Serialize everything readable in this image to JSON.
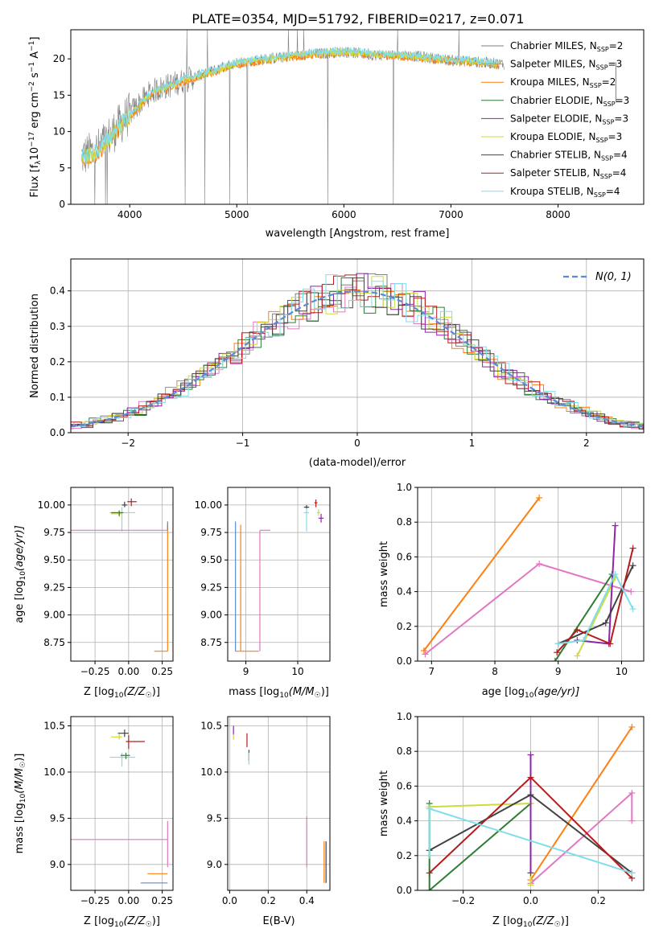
{
  "figure": {
    "title": "PLATE=0354, MJD=51792, FIBERID=0217, z=0.071",
    "colors": {
      "chabrier_miles": "#7f7f7f",
      "salpeter_miles": "#e377c2",
      "kroupa_miles": "#ff7f0e",
      "chabrier_elodie": "#2e7d32",
      "salpeter_elodie": "#8e24aa",
      "kroupa_elodie": "#cddc39",
      "chabrier_stelib": "#424242",
      "salpeter_stelib": "#b71c1c",
      "kroupa_stelib": "#80deea",
      "normal": "#5b8bd6"
    }
  },
  "chart_data": [
    {
      "id": "spectrum",
      "type": "line",
      "xlabel": "wavelength [Angstrom, rest frame]",
      "ylabel_main": "Flux [f",
      "ylabel_sub": "λ",
      "ylabel_rest": "10",
      "ylabel_exp1": "−17",
      "ylabel_tail": " erg cm",
      "ylabel_exp2": "−2",
      "ylabel_s": " s",
      "ylabel_exp3": "−1",
      "ylabel_A": " A",
      "ylabel_exp4": "−1",
      "ylabel_end": "]",
      "xlim": [
        3450,
        8800
      ],
      "ylim": [
        0,
        24
      ],
      "xticks": [
        "4000",
        "5000",
        "6000",
        "7000",
        "8000"
      ],
      "yticks": [
        "0",
        "5",
        "10",
        "15",
        "20"
      ],
      "legend_position": "upper-right",
      "legend": [
        {
          "key": "chabrier_miles",
          "name": "Chabrier MILES, N",
          "sub": "SSP",
          "tail": "=2"
        },
        {
          "key": "salpeter_miles",
          "name": "Salpeter MILES, N",
          "sub": "SSP",
          "tail": "=3"
        },
        {
          "key": "kroupa_miles",
          "name": "Kroupa MILES, N",
          "sub": "SSP",
          "tail": "=2"
        },
        {
          "key": "chabrier_elodie",
          "name": "Chabrier ELODIE, N",
          "sub": "SSP",
          "tail": "=3"
        },
        {
          "key": "salpeter_elodie",
          "name": "Salpeter ELODIE, N",
          "sub": "SSP",
          "tail": "=3"
        },
        {
          "key": "kroupa_elodie",
          "name": "Kroupa ELODIE, N",
          "sub": "SSP",
          "tail": "=3"
        },
        {
          "key": "chabrier_stelib",
          "name": "Chabrier STELIB, N",
          "sub": "SSP",
          "tail": "=4"
        },
        {
          "key": "salpeter_stelib",
          "name": "Salpeter STELIB, N",
          "sub": "SSP",
          "tail": "=4"
        },
        {
          "key": "kroupa_stelib",
          "name": "Kroupa STELIB, N",
          "sub": "SSP",
          "tail": "=4"
        }
      ],
      "data_trend": {
        "x": [
          3550,
          3700,
          3850,
          4000,
          4200,
          4500,
          4800,
          5000,
          5300,
          5600,
          6000,
          6300,
          6600,
          7000,
          7300,
          7500
        ],
        "y": [
          6.5,
          7.5,
          10.0,
          12.5,
          15.5,
          17.0,
          18.5,
          19.5,
          20.0,
          20.5,
          21.0,
          20.5,
          20.5,
          19.8,
          19.5,
          19.3
        ]
      },
      "model_trend": {
        "x": [
          3550,
          3700,
          3850,
          4000,
          4200,
          4500,
          4800,
          5000,
          5300,
          5600,
          6000,
          6300,
          6600,
          7000,
          7300,
          7450
        ],
        "y": [
          6.0,
          7.0,
          9.5,
          12.0,
          15.0,
          16.8,
          18.2,
          19.2,
          19.8,
          20.3,
          20.8,
          20.4,
          20.2,
          19.6,
          19.3,
          19.0
        ]
      }
    },
    {
      "id": "residuals",
      "type": "line",
      "xlabel": "(data-model)/error",
      "ylabel": "Normed distribution",
      "xlim": [
        -2.5,
        2.5
      ],
      "ylim": [
        0,
        0.49
      ],
      "xticks": [
        -2,
        -1,
        0,
        1,
        2
      ],
      "xtick_labels": [
        "−2",
        "−1",
        "0",
        "1",
        "2"
      ],
      "yticks": [
        0.0,
        0.1,
        0.2,
        0.3,
        0.4
      ],
      "ytick_labels": [
        "0.0",
        "0.1",
        "0.2",
        "0.3",
        "0.4"
      ],
      "grid": true,
      "legend_label": "N(0, 1)",
      "legend_position": "upper-right"
    },
    {
      "id": "age_vs_Z",
      "type": "scatter",
      "xlabel": "Z [log",
      "xlabel_sub": "10",
      "xlabel_tail": "(Z/Z",
      "xlabel_sun": "☉",
      "xlabel_end": ")]",
      "ylabel": "age  [log",
      "ylabel_sub": "10",
      "ylabel_tail": "(age/yr)]",
      "xlim": [
        -0.43,
        0.33
      ],
      "ylim": [
        8.58,
        10.16
      ],
      "xticks": [
        -0.25,
        0.0,
        0.25
      ],
      "xtick_labels": [
        "−0.25",
        "0.00",
        "0.25"
      ],
      "yticks": [
        8.75,
        9.0,
        9.25,
        9.5,
        9.75,
        10.0
      ],
      "ytick_labels": [
        "8.75",
        "9.00",
        "9.25",
        "9.50",
        "9.75",
        "10.00"
      ],
      "points": [
        {
          "key": "salpeter_stelib",
          "x": 0.02,
          "y": 10.03,
          "xerr": [
            0.03,
            0.04
          ],
          "yerr": [
            0.04,
            0.03
          ]
        },
        {
          "key": "chabrier_stelib",
          "x": -0.03,
          "y": 10.0,
          "xerr": [
            0.02,
            0.02
          ],
          "yerr": [
            0.02,
            0.03
          ]
        },
        {
          "key": "kroupa_elodie",
          "x": -0.07,
          "y": 9.92,
          "xerr": [
            0.06,
            0.02
          ],
          "yerr": [
            0.03,
            0.03
          ]
        },
        {
          "key": "kroupa_stelib",
          "x": -0.05,
          "y": 9.93,
          "xerr": [
            0.09,
            0.1
          ],
          "yerr": [
            0.17,
            0.05
          ]
        },
        {
          "key": "chabrier_elodie",
          "x": -0.07,
          "y": 9.93,
          "xerr": [
            0.06,
            0.03
          ],
          "yerr": [
            0.03,
            0.02
          ]
        },
        {
          "key": "salpeter_miles",
          "x": 0.29,
          "y": 9.77,
          "xerr": [
            0.72,
            0.0
          ],
          "yerr": [
            0.0,
            0.0
          ]
        },
        {
          "key": "kroupa_miles",
          "x": 0.29,
          "y": 8.67,
          "xerr": [
            0.1,
            0.0
          ],
          "yerr": [
            0.0,
            1.15
          ]
        },
        {
          "key": "chabrier_miles",
          "x": 0.29,
          "y": 9.77,
          "xerr": [
            0.0,
            0.0
          ],
          "yerr": [
            0.0,
            0.08
          ]
        }
      ]
    },
    {
      "id": "age_vs_mass",
      "type": "scatter",
      "xlabel": "mass [log",
      "xlabel_sub": "10",
      "xlabel_tail": "(M/M",
      "xlabel_sun": "☉",
      "xlabel_end": ")]",
      "xlim": [
        8.65,
        10.62
      ],
      "ylim": [
        8.58,
        10.16
      ],
      "xticks": [
        9,
        10
      ],
      "xtick_labels": [
        "9",
        "10"
      ],
      "yticks": [
        8.75,
        9.0,
        9.25,
        9.5,
        9.75,
        10.0
      ],
      "ytick_labels": [
        "8.75",
        "9.00",
        "9.25",
        "9.50",
        "9.75",
        "10.00"
      ],
      "points": [
        {
          "key": "salpeter_stelib",
          "x": 10.35,
          "y": 10.02,
          "xerr": [
            0.03,
            0.03
          ],
          "yerr": [
            0.04,
            0.03
          ]
        },
        {
          "key": "chabrier_stelib",
          "x": 10.17,
          "y": 9.98,
          "xerr": [
            0.05,
            0.05
          ],
          "yerr": [
            0.02,
            0.02
          ]
        },
        {
          "key": "kroupa_stelib",
          "x": 10.17,
          "y": 9.93,
          "xerr": [
            0.05,
            0.05
          ],
          "yerr": [
            0.17,
            0.04
          ]
        },
        {
          "key": "kroupa_elodie",
          "x": 10.4,
          "y": 9.93,
          "xerr": [
            0.03,
            0.03
          ],
          "yerr": [
            0.03,
            0.03
          ]
        },
        {
          "key": "salpeter_elodie",
          "x": 10.45,
          "y": 9.88,
          "xerr": [
            0.05,
            0.05
          ],
          "yerr": [
            0.04,
            0.04
          ]
        },
        {
          "key": "salpeter_miles",
          "x": 9.27,
          "y": 9.77,
          "xerr": [
            0.0,
            0.2
          ],
          "yerr": [
            1.1,
            0.0
          ]
        },
        {
          "key": "kroupa_miles",
          "x": 8.9,
          "y": 8.67,
          "xerr": [
            0.1,
            0.35
          ],
          "yerr": [
            0.0,
            1.15
          ]
        },
        {
          "key": "normal",
          "x": 8.8,
          "y": 8.67,
          "xerr": [
            0.0,
            0.0
          ],
          "yerr": [
            0.0,
            1.18
          ]
        }
      ]
    },
    {
      "id": "weight_vs_age",
      "type": "line",
      "xlabel": "age  [log",
      "xlabel_sub": "10",
      "xlabel_tail": "(age/yr)]",
      "ylabel": "mass weight",
      "xlim": [
        6.78,
        10.35
      ],
      "ylim": [
        0.0,
        1.0
      ],
      "xticks": [
        7,
        8,
        9,
        10
      ],
      "xtick_labels": [
        "7",
        "8",
        "9",
        "10"
      ],
      "yticks": [
        0.0,
        0.2,
        0.4,
        0.6,
        0.8,
        1.0
      ],
      "ytick_labels": [
        "0.0",
        "0.2",
        "0.4",
        "0.6",
        "0.8",
        "1.0"
      ],
      "series": [
        {
          "key": "kroupa_miles",
          "x": [
            6.88,
            8.7
          ],
          "y": [
            0.06,
            0.94
          ]
        },
        {
          "key": "salpeter_miles",
          "x": [
            6.9,
            8.7,
            10.15
          ],
          "y": [
            0.04,
            0.56,
            0.4
          ]
        },
        {
          "key": "chabrier_elodie",
          "x": [
            8.95,
            9.85
          ],
          "y": [
            0.0,
            0.5
          ]
        },
        {
          "key": "kroupa_elodie",
          "x": [
            9.3,
            9.9
          ],
          "y": [
            0.03,
            0.48
          ]
        },
        {
          "key": "salpeter_elodie",
          "x": [
            9.3,
            9.8,
            9.9
          ],
          "y": [
            0.12,
            0.1,
            0.78
          ]
        },
        {
          "key": "chabrier_stelib",
          "x": [
            9.0,
            9.75,
            10.18
          ],
          "y": [
            0.1,
            0.22,
            0.55
          ]
        },
        {
          "key": "salpeter_stelib",
          "x": [
            8.98,
            9.3,
            9.82,
            10.18
          ],
          "y": [
            0.05,
            0.18,
            0.1,
            0.65
          ]
        },
        {
          "key": "kroupa_stelib",
          "x": [
            9.0,
            9.4,
            9.9,
            10.18
          ],
          "y": [
            0.1,
            0.12,
            0.5,
            0.3
          ]
        }
      ]
    },
    {
      "id": "mass_vs_Z",
      "type": "scatter",
      "xlabel": "Z [log",
      "xlabel_sub": "10",
      "xlabel_tail": "(Z/Z",
      "xlabel_sun": "☉",
      "xlabel_end": ")]",
      "ylabel": "mass [log",
      "ylabel_sub": "10",
      "ylabel_tail": "(M/M",
      "ylabel_sun": "☉",
      "ylabel_end": ")]",
      "xlim": [
        -0.43,
        0.33
      ],
      "ylim": [
        8.72,
        10.6
      ],
      "xticks": [
        -0.25,
        0.0,
        0.25
      ],
      "xtick_labels": [
        "−0.25",
        "0.00",
        "0.25"
      ],
      "yticks": [
        9.0,
        9.5,
        10.0,
        10.5
      ],
      "ytick_labels": [
        "9.0",
        "9.5",
        "10.0",
        "10.5"
      ],
      "points": [
        {
          "key": "chabrier_stelib",
          "x": -0.03,
          "y": 10.42,
          "xerr": [
            0.05,
            0.03
          ],
          "yerr": [
            0.04,
            0.04
          ]
        },
        {
          "key": "kroupa_elodie",
          "x": -0.07,
          "y": 10.38,
          "xerr": [
            0.06,
            0.02
          ],
          "yerr": [
            0.03,
            0.03
          ]
        },
        {
          "key": "salpeter_stelib",
          "x": 0.0,
          "y": 10.33,
          "xerr": [
            0.02,
            0.12
          ],
          "yerr": [
            0.08,
            0.07
          ]
        },
        {
          "key": "kroupa_stelib",
          "x": -0.05,
          "y": 10.16,
          "xerr": [
            0.09,
            0.1
          ],
          "yerr": [
            0.1,
            0.05
          ]
        },
        {
          "key": "chabrier_elodie",
          "x": -0.02,
          "y": 10.18,
          "xerr": [
            0.04,
            0.03
          ],
          "yerr": [
            0.04,
            0.03
          ]
        },
        {
          "key": "salpeter_miles",
          "x": 0.29,
          "y": 9.27,
          "xerr": [
            0.72,
            0.0
          ],
          "yerr": [
            0.3,
            0.2
          ]
        },
        {
          "key": "kroupa_miles",
          "x": 0.29,
          "y": 8.9,
          "xerr": [
            0.15,
            0.0
          ],
          "yerr": [
            0.0,
            0.0
          ]
        },
        {
          "key": "normal",
          "x": 0.29,
          "y": 8.8,
          "xerr": [
            0.2,
            0.0
          ],
          "yerr": [
            0.0,
            0.0
          ]
        }
      ]
    },
    {
      "id": "mass_vs_EBV",
      "type": "scatter",
      "xlabel": "E(B-V)",
      "xlim": [
        -0.01,
        0.52
      ],
      "ylim": [
        8.72,
        10.6
      ],
      "xticks": [
        0.0,
        0.2,
        0.4
      ],
      "xtick_labels": [
        "0.0",
        "0.2",
        "0.4"
      ],
      "yticks": [
        9.0,
        9.5,
        10.0,
        10.5
      ],
      "ytick_labels": [
        "9.0",
        "9.5",
        "10.0",
        "10.5"
      ],
      "points": [
        {
          "key": "salpeter_elodie",
          "x": 0.02,
          "y": 10.45,
          "xerr": [
            0.0,
            0.0
          ],
          "yerr": [
            0.05,
            0.05
          ]
        },
        {
          "key": "kroupa_elodie",
          "x": 0.02,
          "y": 10.38,
          "xerr": [
            0.0,
            0.0
          ],
          "yerr": [
            0.03,
            0.03
          ]
        },
        {
          "key": "salpeter_stelib",
          "x": 0.09,
          "y": 10.35,
          "xerr": [
            0.0,
            0.0
          ],
          "yerr": [
            0.08,
            0.07
          ]
        },
        {
          "key": "chabrier_stelib",
          "x": 0.1,
          "y": 10.18,
          "xerr": [
            0.0,
            0.0
          ],
          "yerr": [
            0.06,
            0.06
          ]
        },
        {
          "key": "kroupa_stelib",
          "x": 0.1,
          "y": 10.16,
          "xerr": [
            0.0,
            0.0
          ],
          "yerr": [
            0.08,
            0.05
          ]
        },
        {
          "key": "salpeter_miles",
          "x": 0.4,
          "y": 9.27,
          "xerr": [
            0.0,
            0.0
          ],
          "yerr": [
            0.3,
            0.25
          ]
        },
        {
          "key": "kroupa_miles",
          "x": 0.49,
          "y": 9.0,
          "xerr": [
            0.0,
            0.0
          ],
          "yerr": [
            0.2,
            0.25
          ]
        },
        {
          "key": "chabrier_stelib",
          "x": 0.5,
          "y": 9.02,
          "xerr": [
            0.0,
            0.0
          ],
          "yerr": [
            0.22,
            0.23
          ]
        }
      ]
    },
    {
      "id": "weight_vs_Z",
      "type": "line",
      "xlabel": "Z [log",
      "xlabel_sub": "10",
      "xlabel_tail": "(Z/Z",
      "xlabel_sun": "☉",
      "xlabel_end": ")]",
      "ylabel": "mass weight",
      "xlim": [
        -0.335,
        0.335
      ],
      "ylim": [
        0.0,
        1.0
      ],
      "xticks": [
        -0.2,
        0.0,
        0.2
      ],
      "xtick_labels": [
        "−0.2",
        "0.0",
        "0.2"
      ],
      "yticks": [
        0.0,
        0.2,
        0.4,
        0.6,
        0.8,
        1.0
      ],
      "ytick_labels": [
        "0.0",
        "0.2",
        "0.4",
        "0.6",
        "0.8",
        "1.0"
      ],
      "series": [
        {
          "key": "kroupa_miles",
          "x": [
            0.0,
            0.3
          ],
          "y": [
            0.06,
            0.94
          ]
        },
        {
          "key": "salpeter_miles",
          "x": [
            0.0,
            0.3,
            0.3
          ],
          "y": [
            0.04,
            0.56,
            0.4
          ]
        },
        {
          "key": "chabrier_elodie",
          "x": [
            -0.3,
            -0.3,
            0.0,
            0.0
          ],
          "y": [
            0.5,
            0.0,
            0.5,
            0.1
          ]
        },
        {
          "key": "kroupa_elodie",
          "x": [
            -0.3,
            0.0,
            0.0
          ],
          "y": [
            0.48,
            0.5,
            0.03
          ]
        },
        {
          "key": "salpeter_elodie",
          "x": [
            0.0,
            0.0
          ],
          "y": [
            0.1,
            0.78
          ]
        },
        {
          "key": "chabrier_stelib",
          "x": [
            -0.3,
            0.0,
            0.3
          ],
          "y": [
            0.23,
            0.55,
            0.1
          ]
        },
        {
          "key": "salpeter_stelib",
          "x": [
            -0.3,
            0.0,
            0.3
          ],
          "y": [
            0.1,
            0.65,
            0.07
          ]
        },
        {
          "key": "kroupa_stelib",
          "x": [
            -0.3,
            -0.3,
            0.3
          ],
          "y": [
            0.2,
            0.47,
            0.1
          ]
        }
      ]
    }
  ]
}
